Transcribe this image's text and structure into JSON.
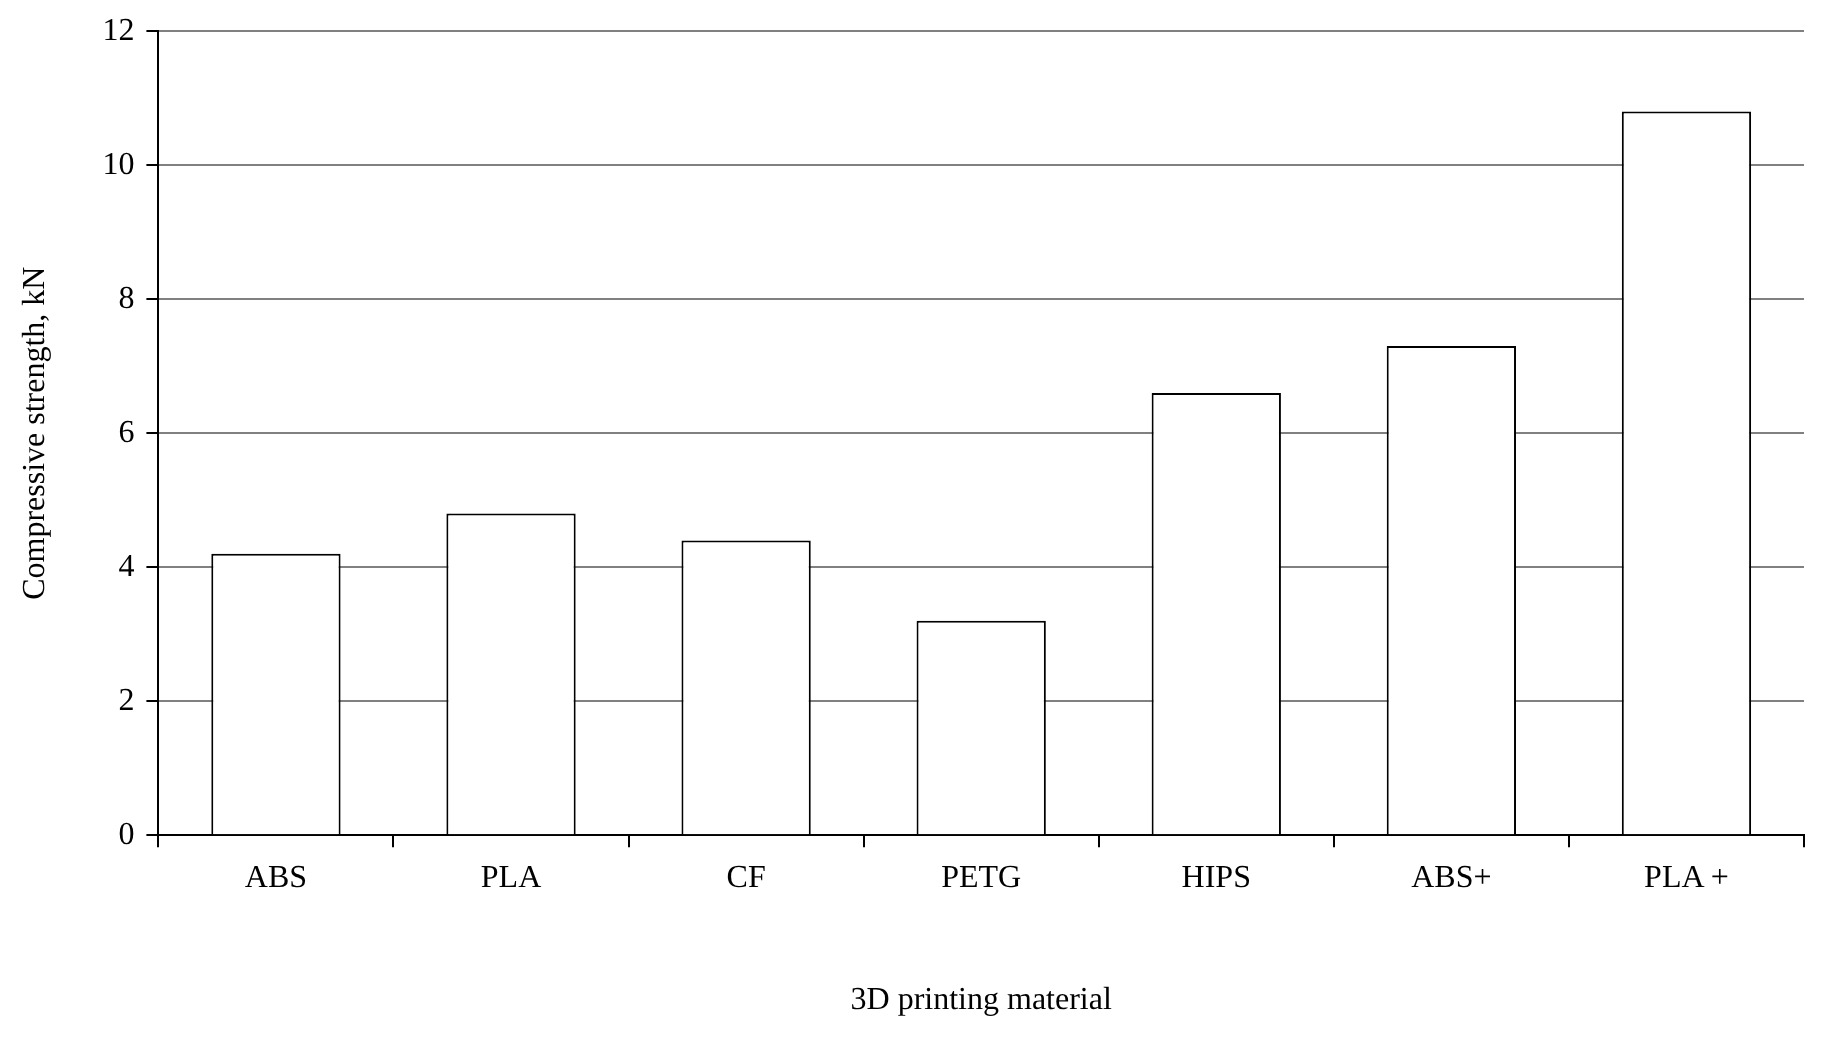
{
  "chart_data": {
    "type": "bar",
    "xlabel": "3D printing material",
    "ylabel": "Compressive strength, kN",
    "categories": [
      "ABS",
      "PLA",
      "CF",
      "PETG",
      "HIPS",
      "ABS+",
      "PLA +"
    ],
    "values": [
      4.2,
      4.8,
      4.4,
      3.2,
      6.6,
      7.3,
      10.8
    ],
    "color": "#ffffff",
    "ylim": [
      0,
      12
    ],
    "yticks": [
      0,
      2,
      4,
      6,
      8,
      10,
      12
    ],
    "grid": "y",
    "legend": false
  }
}
